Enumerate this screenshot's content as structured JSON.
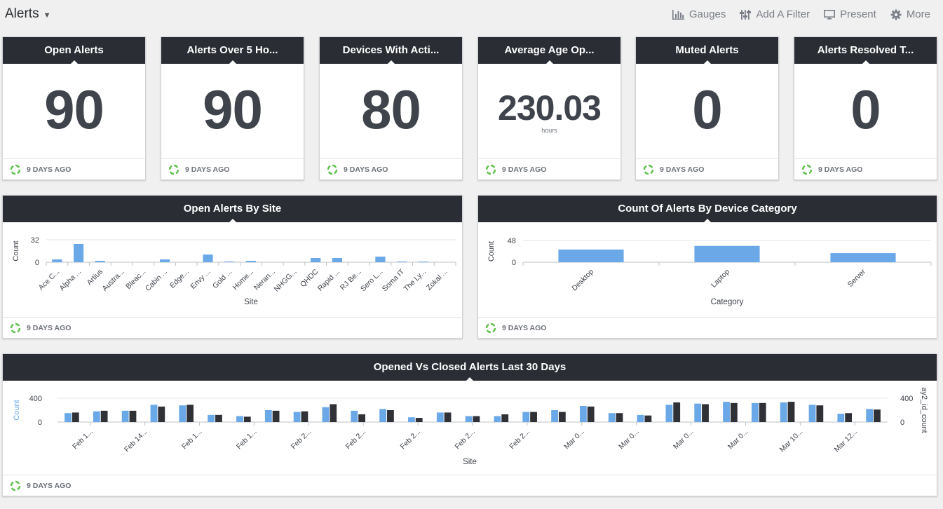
{
  "dashboard": {
    "title": "Alerts"
  },
  "toolbar": {
    "gauges": "Gauges",
    "filter": "Add A Filter",
    "present": "Present",
    "more": "More"
  },
  "metrics": [
    {
      "title": "Open Alerts",
      "value": "90",
      "unit": "",
      "updated": "9 DAYS AGO"
    },
    {
      "title": "Alerts Over 5 Ho...",
      "value": "90",
      "unit": "",
      "updated": "9 DAYS AGO"
    },
    {
      "title": "Devices With Acti...",
      "value": "80",
      "unit": "",
      "updated": "9 DAYS AGO"
    },
    {
      "title": "Average Age Op...",
      "value": "230.03",
      "unit": "hours",
      "updated": "9 DAYS AGO"
    },
    {
      "title": "Muted Alerts",
      "value": "0",
      "unit": "",
      "updated": "9 DAYS AGO"
    },
    {
      "title": "Alerts Resolved T...",
      "value": "0",
      "unit": "",
      "updated": "9 DAYS AGO"
    }
  ],
  "charts": {
    "by_site": {
      "title": "Open Alerts By Site",
      "updated": "9 DAYS AGO"
    },
    "by_category": {
      "title": "Count Of Alerts By Device Category",
      "updated": "9 DAYS AGO"
    },
    "opened_closed": {
      "title": "Opened Vs Closed Alerts Last 30 Days",
      "updated": "9 DAYS AGO"
    }
  },
  "colors": {
    "header": "#2a2d34",
    "bar_blue": "#6aa8e8",
    "bar_dark": "#2f3137",
    "refresh_green": "#5cc04a"
  },
  "chart_data": [
    {
      "type": "bar",
      "title": "Open Alerts By Site",
      "xlabel": "Site",
      "ylabel": "Count",
      "ylim": [
        0,
        32
      ],
      "yticks": [
        0,
        32
      ],
      "categories": [
        "Ace C...",
        "Alpha ...",
        "Artius",
        "Austra...",
        "Bleac...",
        "Cabin ...",
        "Edge...",
        "Envy ...",
        "Gold ...",
        "Home...",
        "Neran...",
        "NHGG...",
        "QHDC",
        "Rapid ...",
        "RJ Be...",
        "Sero L...",
        "Soma IT",
        "The Ly...",
        "Zokal ..."
      ],
      "values": [
        4,
        26,
        2,
        0,
        0,
        4,
        0,
        11,
        1,
        2,
        0,
        0,
        6,
        6,
        0,
        8,
        1,
        1,
        0
      ]
    },
    {
      "type": "bar",
      "title": "Count Of Alerts By Device Category",
      "xlabel": "Category",
      "ylabel": "Count",
      "ylim": [
        0,
        48
      ],
      "yticks": [
        0,
        48
      ],
      "categories": [
        "Desktop",
        "Laptop",
        "Server"
      ],
      "values": [
        28,
        36,
        20
      ]
    },
    {
      "type": "bar",
      "title": "Opened Vs Closed Alerts Last 30 Days",
      "xlabel": "Site",
      "ylabel": "Count",
      "ylabel_right": "ay2_id_count",
      "ylim": [
        0,
        400
      ],
      "yticks": [
        0,
        400
      ],
      "tick_labels": [
        "Feb 1...",
        "Feb 14...",
        "Feb 1...",
        "Feb 1...",
        "Feb 2...",
        "Feb 2...",
        "Feb 2...",
        "Feb 2...",
        "Feb 2...",
        "Mar 0...",
        "Mar 0...",
        "Mar 0...",
        "Mar 0...",
        "Mar 10...",
        "Mar 12..."
      ],
      "series": [
        {
          "name": "Count",
          "values": [
            150,
            180,
            190,
            290,
            280,
            120,
            100,
            200,
            170,
            250,
            190,
            220,
            80,
            160,
            100,
            100,
            170,
            200,
            270,
            150,
            120,
            290,
            310,
            340,
            320,
            330,
            290,
            140,
            220
          ]
        },
        {
          "name": "ay2_id_count",
          "values": [
            160,
            190,
            190,
            260,
            290,
            120,
            90,
            190,
            180,
            300,
            130,
            200,
            70,
            160,
            100,
            130,
            170,
            170,
            260,
            150,
            110,
            330,
            300,
            320,
            320,
            340,
            280,
            150,
            210
          ]
        }
      ]
    }
  ]
}
